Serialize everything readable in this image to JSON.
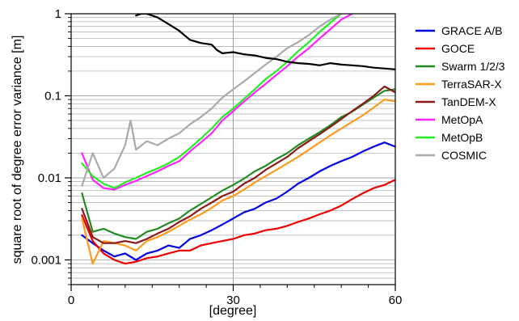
{
  "chart_data": {
    "type": "line",
    "xlabel": "[degree]",
    "ylabel": "square root of degree error variance [m]",
    "xlim": [
      0,
      60
    ],
    "ylim": [
      0.0005,
      1
    ],
    "yscale": "log",
    "grid": true,
    "legend_position": "right",
    "x_ticks": [
      0,
      30,
      60
    ],
    "x_tick_labels": [
      "0",
      "30",
      "60"
    ],
    "y_ticks": [
      0.001,
      0.01,
      0.1,
      1
    ],
    "y_tick_labels": [
      "0.001",
      "0.01",
      "0.1",
      "1"
    ],
    "series": [
      {
        "name": "GRACE A/B",
        "color": "#0000e6",
        "x": [
          2,
          4,
          6,
          8,
          10,
          12,
          14,
          16,
          18,
          20,
          22,
          24,
          26,
          28,
          30,
          32,
          34,
          36,
          38,
          40,
          42,
          44,
          46,
          48,
          50,
          52,
          54,
          56,
          58,
          60
        ],
        "y": [
          0.002,
          0.0016,
          0.0013,
          0.0011,
          0.0012,
          0.001,
          0.0012,
          0.0013,
          0.0015,
          0.0014,
          0.0018,
          0.002,
          0.0023,
          0.0027,
          0.0032,
          0.0038,
          0.0042,
          0.005,
          0.0056,
          0.0068,
          0.0085,
          0.01,
          0.012,
          0.014,
          0.016,
          0.018,
          0.021,
          0.024,
          0.027,
          0.024
        ]
      },
      {
        "name": "GOCE",
        "color": "#ee0000",
        "x": [
          2,
          4,
          6,
          8,
          10,
          12,
          14,
          16,
          18,
          20,
          22,
          24,
          26,
          28,
          30,
          32,
          34,
          36,
          38,
          40,
          42,
          44,
          46,
          48,
          50,
          52,
          54,
          56,
          58,
          60
        ],
        "y": [
          0.0035,
          0.0017,
          0.0012,
          0.001,
          0.0009,
          0.00095,
          0.00105,
          0.0011,
          0.0012,
          0.0013,
          0.0013,
          0.0015,
          0.0016,
          0.0017,
          0.0018,
          0.002,
          0.0021,
          0.0023,
          0.0024,
          0.0026,
          0.0029,
          0.0032,
          0.0036,
          0.004,
          0.0046,
          0.0055,
          0.0065,
          0.0075,
          0.0082,
          0.0095
        ]
      },
      {
        "name": "Swarm 1/2/3",
        "color": "#228b22",
        "x": [
          2,
          4,
          6,
          8,
          10,
          12,
          14,
          16,
          18,
          20,
          22,
          24,
          26,
          28,
          30,
          32,
          34,
          36,
          38,
          40,
          42,
          44,
          46,
          48,
          50,
          52,
          54,
          56,
          58,
          60
        ],
        "y": [
          0.0065,
          0.0022,
          0.0024,
          0.0021,
          0.0019,
          0.0018,
          0.0022,
          0.0024,
          0.0028,
          0.0032,
          0.004,
          0.0048,
          0.0058,
          0.007,
          0.0082,
          0.0098,
          0.012,
          0.014,
          0.017,
          0.02,
          0.025,
          0.03,
          0.036,
          0.044,
          0.055,
          0.064,
          0.078,
          0.095,
          0.115,
          0.12
        ]
      },
      {
        "name": "TerraSAR-X",
        "color": "#ff9a1a",
        "x": [
          2,
          4,
          6,
          8,
          10,
          12,
          14,
          16,
          18,
          20,
          22,
          24,
          26,
          28,
          30,
          32,
          34,
          36,
          38,
          40,
          42,
          44,
          46,
          48,
          50,
          52,
          54,
          56,
          58,
          60
        ],
        "y": [
          0.0032,
          0.0009,
          0.0017,
          0.0016,
          0.0015,
          0.0013,
          0.0017,
          0.0019,
          0.0022,
          0.0026,
          0.0031,
          0.0036,
          0.0043,
          0.0053,
          0.006,
          0.0072,
          0.0088,
          0.0105,
          0.0125,
          0.015,
          0.018,
          0.022,
          0.027,
          0.033,
          0.04,
          0.048,
          0.058,
          0.072,
          0.09,
          0.085
        ]
      },
      {
        "name": "TanDEM-X",
        "color": "#8b1a1a",
        "x": [
          2,
          4,
          6,
          8,
          10,
          12,
          14,
          16,
          18,
          20,
          22,
          24,
          26,
          28,
          30,
          32,
          34,
          36,
          38,
          40,
          42,
          44,
          46,
          48,
          50,
          52,
          54,
          56,
          58,
          60
        ],
        "y": [
          0.0042,
          0.0019,
          0.0016,
          0.0016,
          0.0017,
          0.0016,
          0.0018,
          0.0021,
          0.0024,
          0.0029,
          0.0034,
          0.0042,
          0.005,
          0.006,
          0.0068,
          0.0085,
          0.01,
          0.0125,
          0.015,
          0.018,
          0.023,
          0.028,
          0.034,
          0.042,
          0.052,
          0.065,
          0.08,
          0.1,
          0.13,
          0.11
        ]
      },
      {
        "name": "MetOpA",
        "color": "#ff22ff",
        "x": [
          2,
          4,
          6,
          8,
          10,
          12,
          14,
          16,
          18,
          20,
          22,
          24,
          26,
          28,
          30,
          32,
          34,
          36,
          38,
          40,
          42,
          44,
          46,
          48,
          50,
          52
        ],
        "y": [
          0.02,
          0.0095,
          0.0075,
          0.0072,
          0.0082,
          0.0092,
          0.0105,
          0.012,
          0.014,
          0.016,
          0.021,
          0.027,
          0.035,
          0.05,
          0.065,
          0.085,
          0.11,
          0.14,
          0.18,
          0.23,
          0.3,
          0.38,
          0.5,
          0.65,
          0.85,
          1.0
        ]
      },
      {
        "name": "MetOpB",
        "color": "#22ee22",
        "x": [
          2,
          4,
          6,
          8,
          10,
          12,
          14,
          16,
          18,
          20,
          22,
          24,
          26,
          28,
          30,
          32,
          34,
          36,
          38,
          40,
          42,
          44,
          46,
          48,
          50
        ],
        "y": [
          0.015,
          0.0105,
          0.0085,
          0.0075,
          0.0088,
          0.01,
          0.0115,
          0.013,
          0.015,
          0.018,
          0.023,
          0.03,
          0.04,
          0.055,
          0.07,
          0.092,
          0.12,
          0.16,
          0.2,
          0.26,
          0.35,
          0.45,
          0.6,
          0.78,
          1.0
        ]
      },
      {
        "name": "COSMIC",
        "color": "#aaaaaa",
        "x": [
          2,
          4,
          6,
          8,
          10,
          11,
          12,
          14,
          16,
          18,
          20,
          22,
          24,
          26,
          28,
          30,
          32,
          34,
          36,
          38,
          40,
          42,
          44,
          46,
          48,
          50
        ],
        "y": [
          0.008,
          0.02,
          0.01,
          0.013,
          0.025,
          0.05,
          0.022,
          0.028,
          0.025,
          0.03,
          0.035,
          0.045,
          0.055,
          0.07,
          0.095,
          0.12,
          0.15,
          0.19,
          0.24,
          0.3,
          0.38,
          0.45,
          0.55,
          0.7,
          0.85,
          1.0
        ]
      },
      {
        "name": "",
        "color": "#000000",
        "x": [
          12,
          13,
          14,
          16,
          18,
          20,
          22,
          24,
          26,
          27,
          28,
          30,
          32,
          34,
          36,
          38,
          40,
          42,
          44,
          46,
          48,
          50,
          52,
          54,
          56,
          58,
          60
        ],
        "y": [
          0.95,
          1.0,
          1.0,
          0.9,
          0.75,
          0.62,
          0.48,
          0.44,
          0.42,
          0.36,
          0.33,
          0.34,
          0.32,
          0.31,
          0.29,
          0.28,
          0.26,
          0.25,
          0.245,
          0.235,
          0.25,
          0.24,
          0.235,
          0.23,
          0.22,
          0.215,
          0.21
        ]
      }
    ]
  }
}
